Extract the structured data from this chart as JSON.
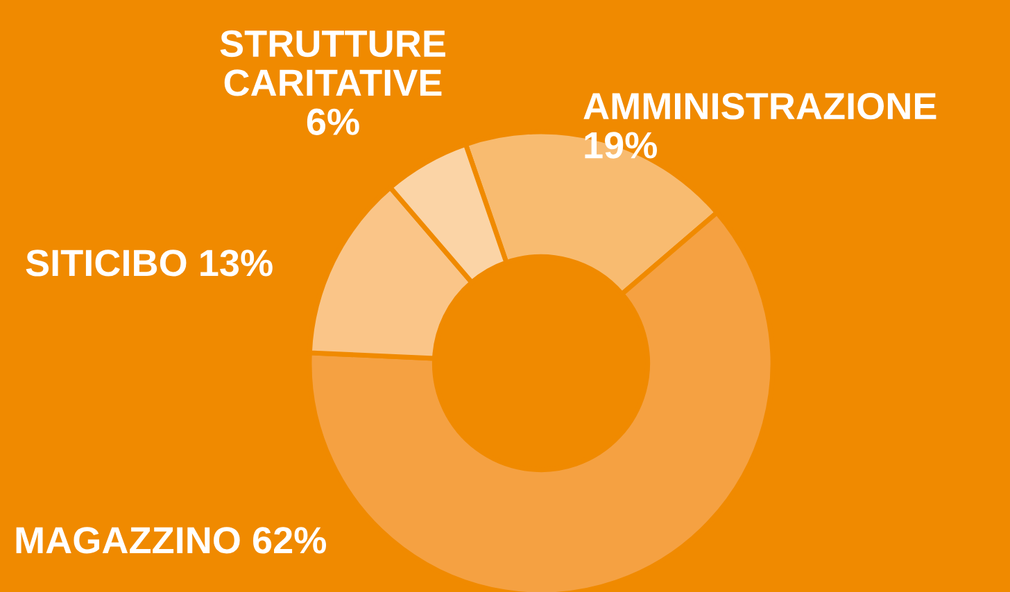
{
  "chart_data": {
    "type": "donut",
    "categories": [
      "AMMINISTRAZIONE",
      "MAGAZZINO",
      "SITICIBO",
      "STRUTTURE CARITATIVE"
    ],
    "values": [
      19,
      62,
      13,
      6
    ],
    "value_labels": [
      "19%",
      "62%",
      "13%",
      "6%"
    ],
    "colors": [
      "#f8bb70",
      "#f5a142",
      "#fac588",
      "#fbd4a6"
    ],
    "legend": false
  }
}
